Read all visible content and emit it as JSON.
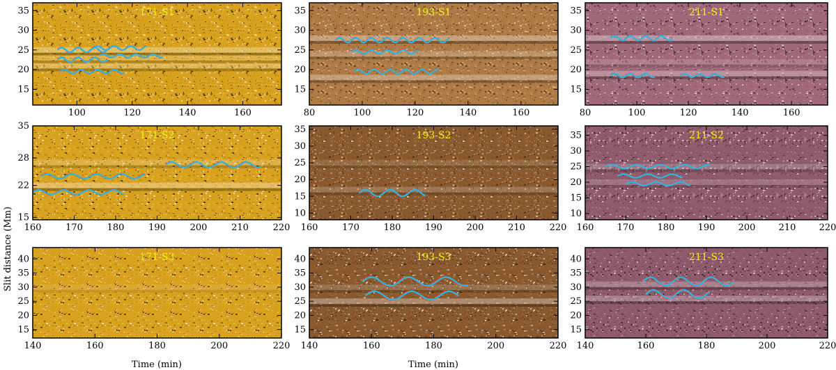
{
  "figure": {
    "xlabel": "Time (min)",
    "ylabel": "Slit distance (Mm)"
  },
  "chart_data": [
    {
      "type": "heatmap",
      "title": "171-S1",
      "colormap": "#d9a21e",
      "xlim": [
        84,
        174
      ],
      "ylim": [
        11,
        37
      ],
      "xticks": [
        100,
        120,
        140,
        160
      ],
      "yticks": [
        15,
        20,
        25,
        30,
        35
      ],
      "bands": [
        {
          "y": 25,
          "bright": 1
        },
        {
          "y": 21,
          "bright": 0.8
        },
        {
          "y": 23,
          "bright": 0.6
        }
      ],
      "fits": [
        {
          "x0": 93,
          "x1": 112,
          "y": 25,
          "amp": 0.6,
          "period": 6
        },
        {
          "x0": 93,
          "x1": 111,
          "y": 22.5,
          "amp": 0.6,
          "period": 6
        },
        {
          "x0": 94,
          "x1": 117,
          "y": 19.5,
          "amp": 0.5,
          "period": 6
        },
        {
          "x0": 106,
          "x1": 125,
          "y": 25.5,
          "amp": 0.5,
          "period": 6
        },
        {
          "x0": 108,
          "x1": 131,
          "y": 23.5,
          "amp": 0.4,
          "period": 6
        }
      ]
    },
    {
      "type": "heatmap",
      "title": "193-S1",
      "colormap": "#b07a44",
      "xlim": [
        80,
        174
      ],
      "ylim": [
        11,
        37
      ],
      "xticks": [
        80,
        100,
        120,
        140,
        160
      ],
      "yticks": [
        15,
        20,
        25,
        30,
        35
      ],
      "bands": [
        {
          "y": 28,
          "bright": 1
        },
        {
          "y": 24,
          "bright": 0.7
        },
        {
          "y": 18,
          "bright": 0.9
        }
      ],
      "fits": [
        {
          "x0": 90,
          "x1": 133,
          "y": 27.5,
          "amp": 0.6,
          "period": 6
        },
        {
          "x0": 96,
          "x1": 121,
          "y": 24.5,
          "amp": 0.5,
          "period": 6
        },
        {
          "x0": 97,
          "x1": 129,
          "y": 19.5,
          "amp": 0.6,
          "period": 6
        }
      ]
    },
    {
      "type": "heatmap",
      "title": "211-S1",
      "colormap": "#a06878",
      "xlim": [
        80,
        174
      ],
      "ylim": [
        11,
        37
      ],
      "xticks": [
        80,
        100,
        120,
        140,
        160
      ],
      "yticks": [
        15,
        20,
        25,
        30,
        35
      ],
      "bands": [
        {
          "y": 28,
          "bright": 1
        },
        {
          "y": 19,
          "bright": 0.9
        },
        {
          "y": 22,
          "bright": 0.5
        }
      ],
      "fits": [
        {
          "x0": 90,
          "x1": 114,
          "y": 28,
          "amp": 0.6,
          "period": 6
        },
        {
          "x0": 90,
          "x1": 107,
          "y": 18.5,
          "amp": 0.5,
          "period": 6
        },
        {
          "x0": 117,
          "x1": 134,
          "y": 18.5,
          "amp": 0.4,
          "period": 6
        }
      ]
    },
    {
      "type": "heatmap",
      "title": "171-S2",
      "colormap": "#d9a21e",
      "xlim": [
        160,
        220
      ],
      "ylim": [
        14.5,
        35
      ],
      "xticks": [
        160,
        170,
        180,
        190,
        200,
        210,
        220
      ],
      "yticks": [
        15,
        22,
        28,
        35
      ],
      "bands": [
        {
          "y": 22,
          "bright": 1
        },
        {
          "y": 27,
          "bright": 0.6
        }
      ],
      "fits": [
        {
          "x0": 162,
          "x1": 187,
          "y": 24,
          "amp": 0.5,
          "period": 6
        },
        {
          "x0": 160,
          "x1": 182,
          "y": 20.5,
          "amp": 0.5,
          "period": 6
        },
        {
          "x0": 192,
          "x1": 215,
          "y": 26.5,
          "amp": 0.6,
          "period": 6
        }
      ]
    },
    {
      "type": "heatmap",
      "title": "193-S2",
      "colormap": "#8a5a2e",
      "xlim": [
        160,
        220
      ],
      "ylim": [
        8,
        36
      ],
      "xticks": [
        160,
        170,
        180,
        190,
        200,
        210,
        220
      ],
      "yticks": [
        10,
        15,
        20,
        25,
        30,
        35
      ],
      "bands": [
        {
          "y": 17,
          "bright": 0.6
        },
        {
          "y": 25,
          "bright": 0.4
        }
      ],
      "fits": [
        {
          "x0": 172,
          "x1": 188,
          "y": 16,
          "amp": 1,
          "period": 6
        }
      ]
    },
    {
      "type": "heatmap",
      "title": "211-S2",
      "colormap": "#8e5a6c",
      "xlim": [
        160,
        220
      ],
      "ylim": [
        8,
        38
      ],
      "xticks": [
        160,
        170,
        180,
        190,
        200,
        210,
        220
      ],
      "yticks": [
        10,
        15,
        20,
        25,
        30,
        35
      ],
      "bands": [
        {
          "y": 25,
          "bright": 0.6
        },
        {
          "y": 20,
          "bright": 0.5
        }
      ],
      "fits": [
        {
          "x0": 165,
          "x1": 191,
          "y": 25,
          "amp": 0.6,
          "period": 6
        },
        {
          "x0": 168,
          "x1": 184,
          "y": 22,
          "amp": 0.6,
          "period": 6
        },
        {
          "x0": 170,
          "x1": 186,
          "y": 19.5,
          "amp": 0.6,
          "period": 6
        }
      ]
    },
    {
      "type": "heatmap",
      "title": "171-S3",
      "colormap": "#d9a21e",
      "xlim": [
        140,
        220
      ],
      "ylim": [
        12,
        44
      ],
      "xticks": [
        140,
        160,
        180,
        200,
        220
      ],
      "yticks": [
        15,
        20,
        25,
        30,
        35,
        40
      ],
      "bands": [
        {
          "y": 30,
          "bright": 0.3
        }
      ],
      "fits": []
    },
    {
      "type": "heatmap",
      "title": "193-S3",
      "colormap": "#8a5a2e",
      "xlim": [
        140,
        220
      ],
      "ylim": [
        12,
        44
      ],
      "xticks": [
        140,
        160,
        180,
        200,
        220
      ],
      "yticks": [
        15,
        20,
        25,
        30,
        35,
        40
      ],
      "bands": [
        {
          "y": 25,
          "bright": 1
        },
        {
          "y": 30,
          "bright": 0.5
        }
      ],
      "fits": [
        {
          "x0": 157,
          "x1": 191,
          "y": 32,
          "amp": 1.5,
          "period": 12
        },
        {
          "x0": 158,
          "x1": 188,
          "y": 27,
          "amp": 1.5,
          "period": 12
        }
      ]
    },
    {
      "type": "heatmap",
      "title": "211-S3",
      "colormap": "#8e5a6c",
      "xlim": [
        140,
        220
      ],
      "ylim": [
        12,
        44
      ],
      "xticks": [
        140,
        160,
        180,
        200,
        220
      ],
      "yticks": [
        15,
        20,
        25,
        30,
        35,
        40
      ],
      "bands": [
        {
          "y": 26,
          "bright": 0.8
        },
        {
          "y": 31,
          "bright": 0.8
        }
      ],
      "fits": [
        {
          "x0": 159,
          "x1": 189,
          "y": 32,
          "amp": 1.5,
          "period": 10
        },
        {
          "x0": 160,
          "x1": 181,
          "y": 27.5,
          "amp": 1.5,
          "period": 10
        }
      ]
    }
  ]
}
